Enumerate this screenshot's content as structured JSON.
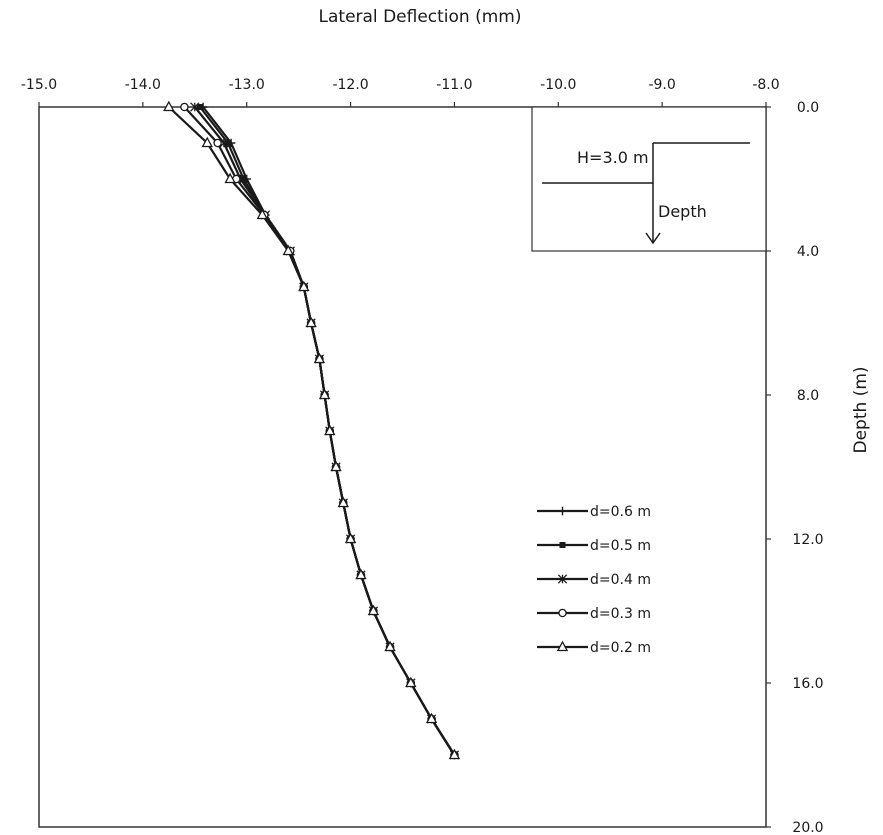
{
  "chart_data": {
    "type": "line",
    "title": "",
    "xlabel": "Lateral Deflection (mm)",
    "ylabel": "Depth (m)",
    "x_axis_position": "top",
    "y_axis_position": "right",
    "y_inverted": true,
    "xlim": [
      -15.0,
      -8.0
    ],
    "ylim": [
      0.0,
      20.0
    ],
    "x_ticks": [
      -15.0,
      -14.0,
      -13.0,
      -12.0,
      -11.0,
      -10.0,
      -9.0,
      -8.0
    ],
    "x_tick_labels": [
      "-15.0",
      "-14.0",
      "-13.0",
      "-12.0",
      "-11.0",
      "-10.0",
      "-9.0",
      "-8.0"
    ],
    "y_ticks": [
      0.0,
      4.0,
      8.0,
      12.0,
      16.0,
      20.0
    ],
    "y_tick_labels": [
      "0.0",
      "4.0",
      "8.0",
      "12.0",
      "16.0",
      "20.0"
    ],
    "grid": false,
    "legend_position": "right-middle",
    "depth": [
      0.0,
      1.0,
      2.0,
      3.0,
      4.0,
      5.0,
      6.0,
      7.0,
      8.0,
      9.0,
      10.0,
      11.0,
      12.0,
      13.0,
      14.0,
      15.0,
      16.0,
      17.0,
      18.0
    ],
    "series": [
      {
        "name": "d=0.6 m",
        "marker": "plus",
        "x": [
          -13.42,
          -13.15,
          -13.0,
          -12.82,
          -12.58,
          -12.45,
          -12.38,
          -12.3,
          -12.25,
          -12.2,
          -12.14,
          -12.07,
          -12.0,
          -11.9,
          -11.78,
          -11.62,
          -11.42,
          -11.22,
          -11.0
        ]
      },
      {
        "name": "d=0.5 m",
        "marker": "dot",
        "x": [
          -13.45,
          -13.18,
          -13.03,
          -12.82,
          -12.58,
          -12.45,
          -12.38,
          -12.3,
          -12.25,
          -12.2,
          -12.14,
          -12.07,
          -12.0,
          -11.9,
          -11.78,
          -11.62,
          -11.42,
          -11.22,
          -11.0
        ]
      },
      {
        "name": "d=0.4 m",
        "marker": "star",
        "x": [
          -13.5,
          -13.22,
          -13.06,
          -12.82,
          -12.58,
          -12.45,
          -12.38,
          -12.3,
          -12.25,
          -12.2,
          -12.14,
          -12.07,
          -12.0,
          -11.9,
          -11.78,
          -11.62,
          -11.42,
          -11.22,
          -11.0
        ]
      },
      {
        "name": "d=0.3 m",
        "marker": "circle",
        "x": [
          -13.6,
          -13.28,
          -13.1,
          -12.83,
          -12.58,
          -12.45,
          -12.38,
          -12.3,
          -12.25,
          -12.2,
          -12.14,
          -12.07,
          -12.0,
          -11.9,
          -11.78,
          -11.62,
          -11.42,
          -11.22,
          -11.0
        ]
      },
      {
        "name": "d=0.2 m",
        "marker": "triangle",
        "x": [
          -13.75,
          -13.38,
          -13.16,
          -12.85,
          -12.6,
          -12.45,
          -12.38,
          -12.3,
          -12.25,
          -12.2,
          -12.14,
          -12.07,
          -12.0,
          -11.9,
          -11.78,
          -11.62,
          -11.42,
          -11.22,
          -11.0
        ]
      }
    ],
    "inset": {
      "label": "H=3.0 m",
      "arrow_label": "Depth"
    },
    "colors": {
      "line": "#1a1a1a",
      "frame": "#333333"
    }
  }
}
